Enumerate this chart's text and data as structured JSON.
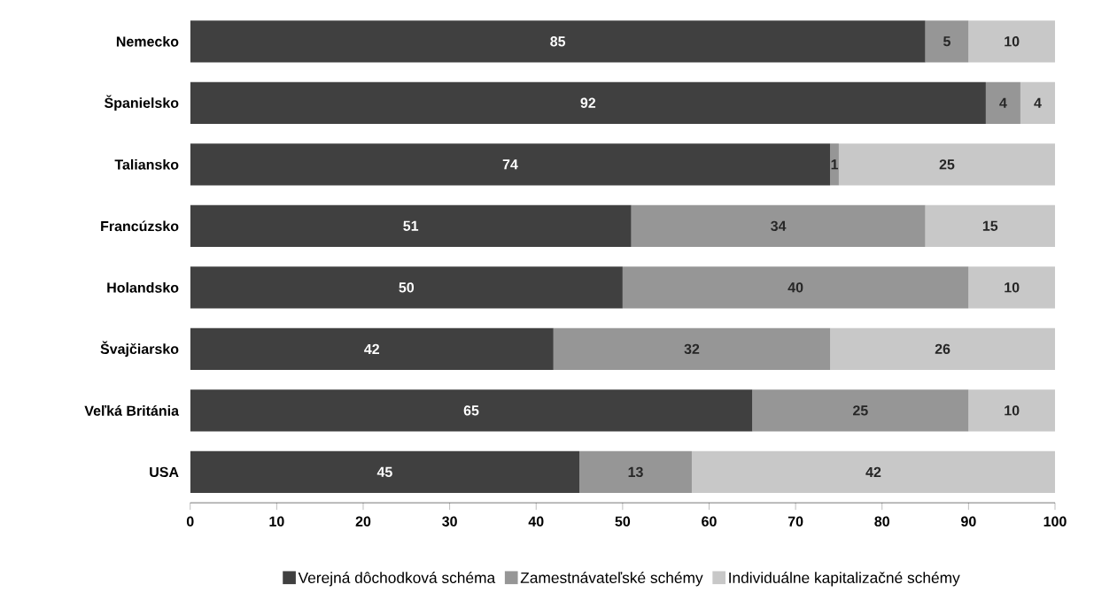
{
  "chart_data": {
    "type": "bar",
    "orientation": "horizontal",
    "stacked": true,
    "data_labels": true,
    "legend": "bottom",
    "grid": false,
    "categories": [
      "Nemecko",
      "Španielsko",
      "Taliansko",
      "Francúzsko",
      "Holandsko",
      "Švajčiarsko",
      "Veľká Británia",
      "USA"
    ],
    "series": [
      {
        "name": "Verejná dôchodková schéma",
        "color": "#404040",
        "values": [
          85,
          92,
          74,
          51,
          50,
          42,
          65,
          45
        ]
      },
      {
        "name": "Zamestnávateľské schémy",
        "color": "#969696",
        "values": [
          5,
          4,
          1,
          34,
          40,
          32,
          25,
          13
        ]
      },
      {
        "name": "Individuálne kapitalizačné schémy",
        "color": "#c8c8c8",
        "values": [
          10,
          4,
          25,
          15,
          10,
          26,
          10,
          42
        ]
      }
    ],
    "xlim": [
      0,
      100
    ],
    "xticks": [
      0,
      10,
      20,
      30,
      40,
      50,
      60,
      70,
      80,
      90,
      100
    ]
  }
}
